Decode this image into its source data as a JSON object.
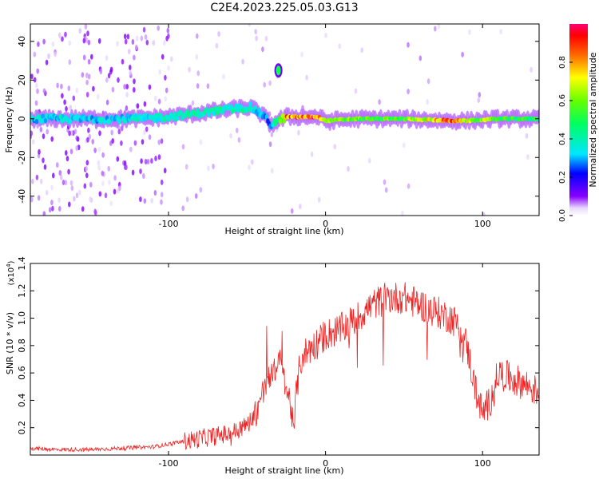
{
  "title": "C2E4.2023.225.05.03.G13",
  "chart_data": [
    {
      "type": "heatmap",
      "xlabel": "Height of straight line (km)",
      "ylabel": "Frequency (Hz)",
      "xlim": [
        -188,
        136
      ],
      "ylim": [
        -50,
        49
      ],
      "x_ticks": [
        -100,
        0,
        100
      ],
      "x_tick_labels": [
        "-100",
        "0",
        "100"
      ],
      "y_ticks": [
        -40,
        -20,
        0,
        20,
        40
      ],
      "y_tick_labels": [
        "-40",
        "-20",
        "0",
        "20",
        "40"
      ],
      "colorbar": {
        "label": "Normalized spectral amplitude",
        "range": [
          0,
          1
        ],
        "ticks": [
          0.0,
          0.2,
          0.4,
          0.6,
          0.8
        ],
        "tick_labels": [
          "0.0",
          "0.2",
          "0.4",
          "0.6",
          "0.8"
        ]
      },
      "ridge": {
        "x": [
          -188,
          -150,
          -120,
          -100,
          -80,
          -60,
          -48,
          -40,
          -35,
          -30,
          -25,
          -20,
          -5,
          0,
          20,
          50,
          80,
          90,
          110,
          136
        ],
        "freq": [
          0,
          0,
          0,
          1,
          3,
          5,
          6,
          2,
          -3,
          -1,
          1,
          1,
          1,
          -1,
          0,
          0,
          -1,
          -1,
          0,
          0
        ],
        "amplitude": [
          0.35,
          0.35,
          0.38,
          0.4,
          0.42,
          0.45,
          0.4,
          0.3,
          0.3,
          0.5,
          0.85,
          0.9,
          0.95,
          0.7,
          0.6,
          0.6,
          0.9,
          0.7,
          0.6,
          0.5
        ]
      },
      "feature": {
        "x": -30,
        "freq": 25,
        "amplitude": 0.5
      }
    },
    {
      "type": "line",
      "xlabel": "Height of straight line (km)",
      "ylabel": "SNR (10 * v/v)",
      "yscale_label": "(x10",
      "yscale_exp": "4",
      "xlim": [
        -188,
        136
      ],
      "ylim": [
        0.0,
        1.4
      ],
      "x_ticks": [
        -100,
        0,
        100
      ],
      "x_tick_labels": [
        "-100",
        "0",
        "100"
      ],
      "y_ticks": [
        0.2,
        0.4,
        0.6,
        0.8,
        1.0,
        1.2,
        1.4
      ],
      "y_tick_labels": [
        "0.2",
        "0.4",
        "0.6",
        "0.8",
        "1.0",
        "1.2",
        "1.4"
      ],
      "series": [
        {
          "color": "#ee2222",
          "x": [
            -188,
            -170,
            -150,
            -130,
            -110,
            -100,
            -90,
            -80,
            -70,
            -60,
            -50,
            -45,
            -40,
            -35,
            -32,
            -30,
            -27,
            -25,
            -22,
            -20,
            -19,
            -17,
            -15,
            -10,
            -5,
            0,
            5,
            10,
            20,
            30,
            40,
            50,
            60,
            70,
            80,
            85,
            90,
            95,
            100,
            105,
            110,
            120,
            130,
            136
          ],
          "values": [
            0.05,
            0.04,
            0.04,
            0.05,
            0.06,
            0.08,
            0.1,
            0.12,
            0.14,
            0.16,
            0.22,
            0.3,
            0.45,
            0.55,
            0.65,
            0.7,
            0.62,
            0.5,
            0.35,
            0.2,
            0.4,
            0.6,
            0.72,
            0.78,
            0.82,
            0.88,
            0.9,
            0.92,
            1.0,
            1.1,
            1.15,
            1.15,
            1.1,
            1.05,
            1.0,
            0.95,
            0.8,
            0.5,
            0.3,
            0.4,
            0.6,
            0.55,
            0.5,
            0.45
          ]
        }
      ]
    }
  ]
}
